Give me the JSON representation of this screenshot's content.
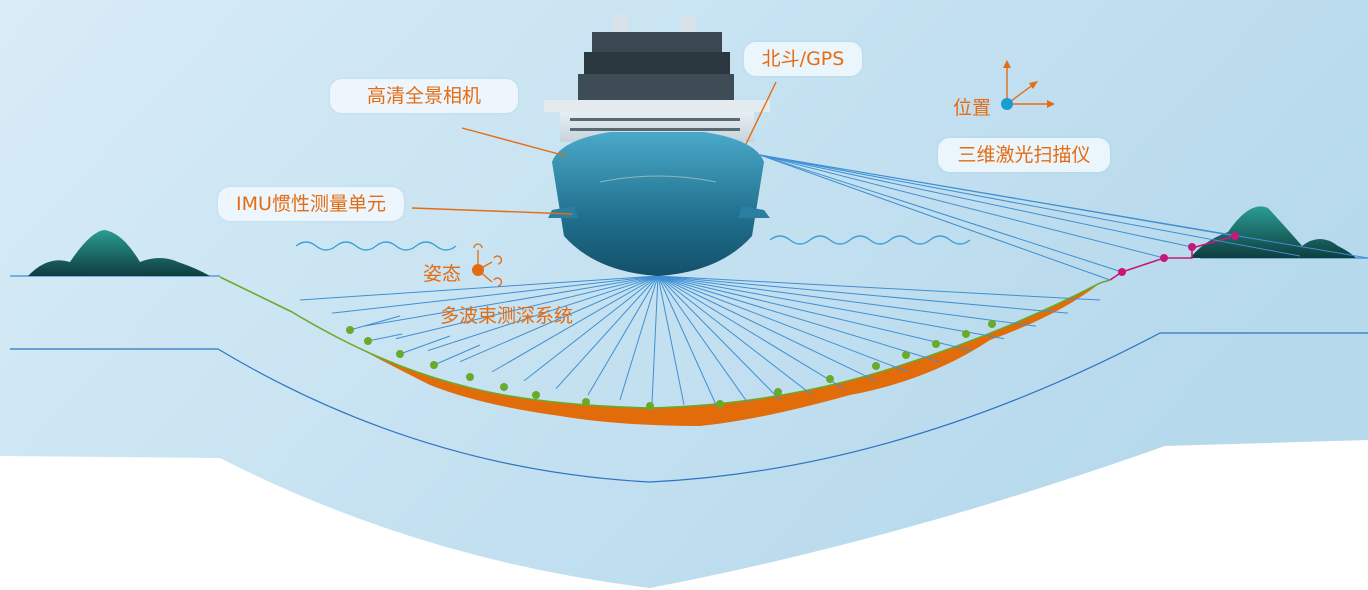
{
  "labels": {
    "camera": "高清全景相机",
    "gnss": "北斗/GPS",
    "imu": "IMU惯性测量单元",
    "position": "位置",
    "lidar": "三维激光扫描仪",
    "attitude": "姿态",
    "multibeam": "多波束测深系统"
  },
  "colors": {
    "sky_top": "#d3e9f5",
    "sky_bottom": "#b9dcee",
    "seabed_fill": "#e36c0a",
    "sounding_point": "#6aaa2a",
    "lidar_point": "#c8177a",
    "beam_line": "#3f8fd3",
    "label_text": "#e46c12",
    "hill": "#1e7f7a",
    "hull": "#2a7fa0"
  }
}
